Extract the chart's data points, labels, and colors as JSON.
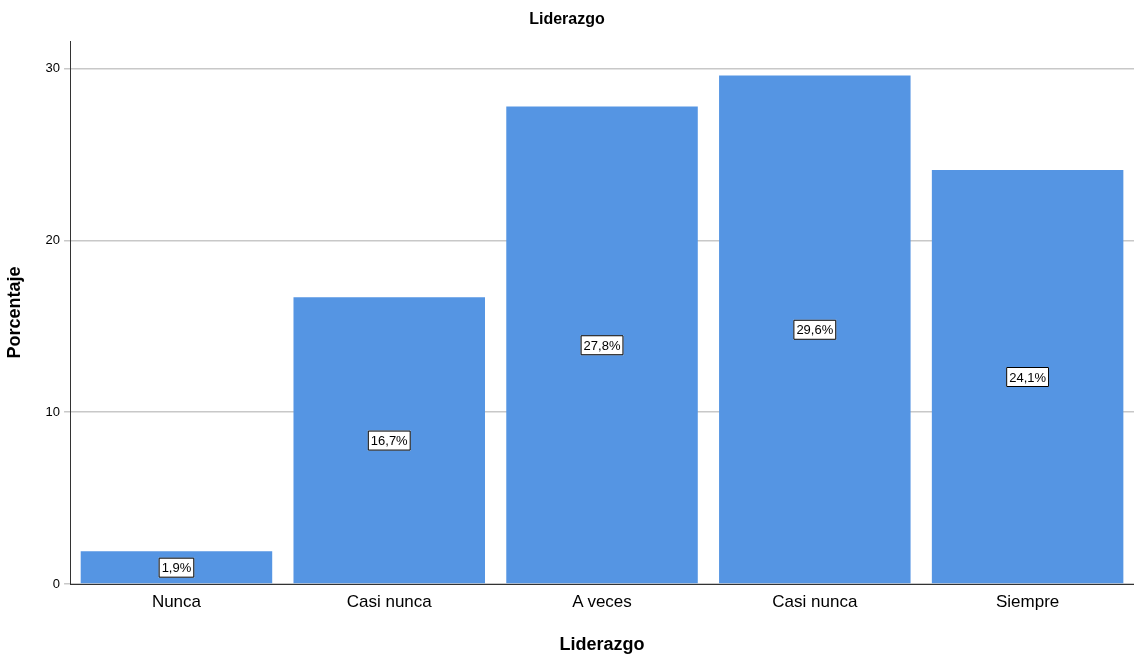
{
  "chart_data": {
    "type": "bar",
    "title": "Liderazgo",
    "xlabel": "Liderazgo",
    "ylabel": "Porcentaje",
    "categories": [
      "Nunca",
      "Casi nunca",
      "A veces",
      "Casi nunca",
      "Siempre"
    ],
    "values": [
      1.9,
      16.7,
      27.8,
      29.6,
      24.1
    ],
    "value_labels": [
      "1,9%",
      "16,7%",
      "27,8%",
      "29,6%",
      "24,1%"
    ],
    "color": "#5595e3",
    "ylim": [
      0,
      31.6
    ],
    "yticks": [
      0,
      10,
      20,
      30
    ],
    "grid": "y",
    "legend": false
  }
}
